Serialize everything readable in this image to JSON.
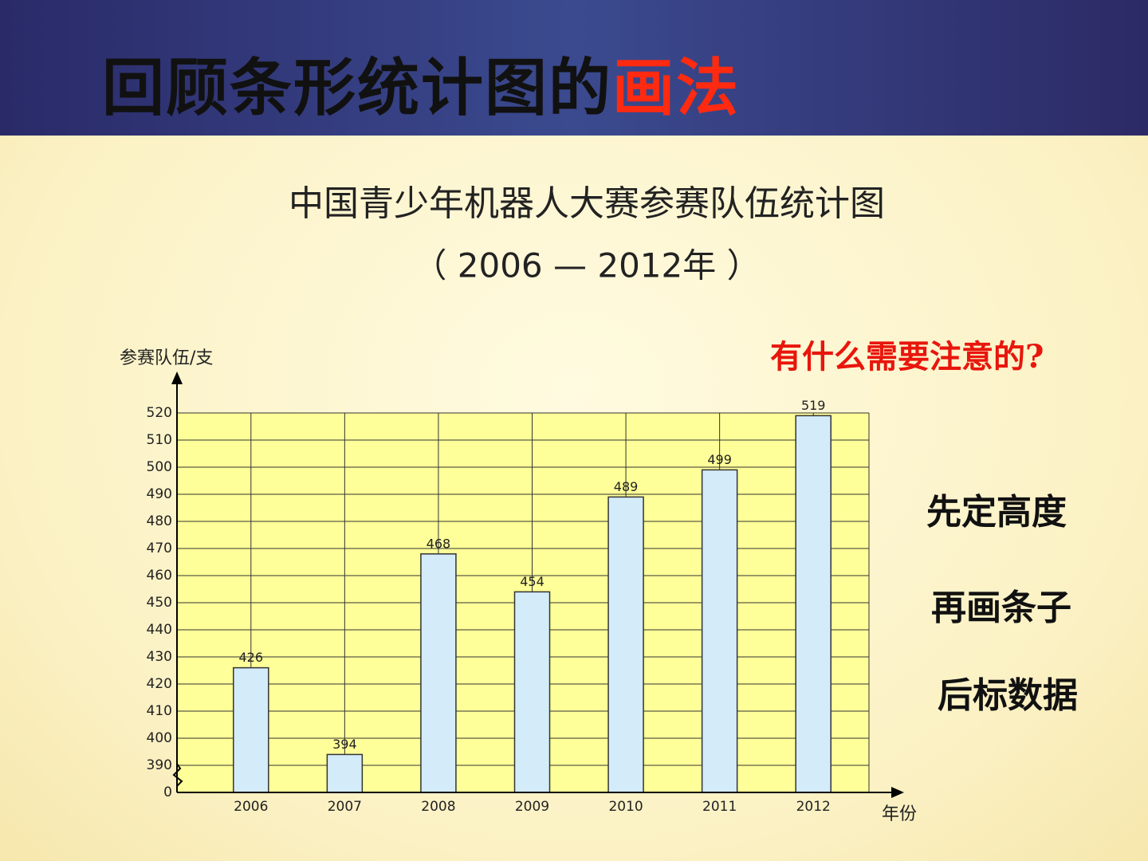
{
  "slide": {
    "title": [
      "回顾条形统计图的",
      "画法"
    ],
    "question": "有什么需要注意的?",
    "steps": [
      "先定高度",
      "再画条子",
      "后标数据"
    ]
  },
  "chart_data": {
    "type": "bar",
    "title": "中国青少年机器人大赛参赛队伍统计图",
    "subtitle": "（ 2006 — 2012年 ）",
    "y_label": "参赛队伍/支",
    "x_label": "年份",
    "categories": [
      "2006",
      "2007",
      "2008",
      "2009",
      "2010",
      "2011",
      "2012"
    ],
    "values": [
      426,
      394,
      468,
      454,
      489,
      499,
      519
    ],
    "color": "#d4ecfa",
    "ylim": [
      0,
      520
    ],
    "yticks": [
      0,
      390,
      400,
      410,
      420,
      430,
      440,
      450,
      460,
      470,
      480,
      490,
      500,
      510,
      520
    ],
    "axis_break": true,
    "grid": true
  }
}
